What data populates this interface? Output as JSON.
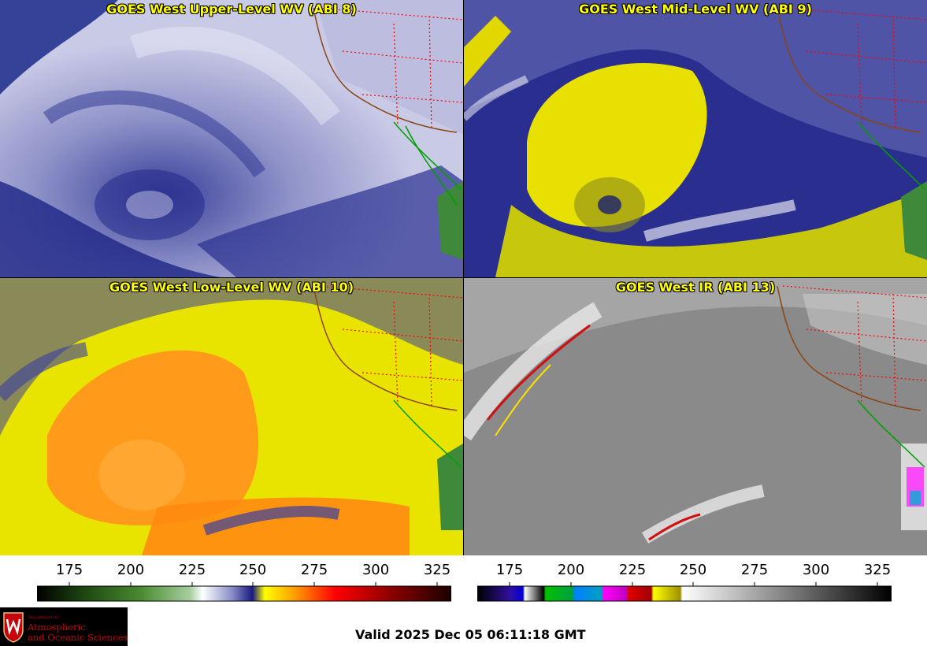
{
  "panels": [
    {
      "title": "GOES West Upper-Level WV (ABI 8)"
    },
    {
      "title": "GOES West Mid-Level WV (ABI 9)"
    },
    {
      "title": "GOES West Low-Level WV (ABI 10)"
    },
    {
      "title": "GOES West IR (ABI 13)"
    }
  ],
  "colorbars": {
    "wv_ticks": [
      "175",
      "200",
      "225",
      "250",
      "275",
      "300",
      "325"
    ],
    "ir_ticks": [
      "175",
      "200",
      "225",
      "250",
      "275",
      "300",
      "325"
    ]
  },
  "logo": {
    "dept_line": "Department of",
    "line1": "Atmospheric",
    "line2": "and Oceanic Sciences"
  },
  "valid_time": "Valid 2025 Dec 05 06:11:18 GMT",
  "colors": {
    "title": "#ffff00",
    "state_borders": "#ff0000",
    "coastline": "#8b4513",
    "mexico_coast": "#00a000"
  }
}
